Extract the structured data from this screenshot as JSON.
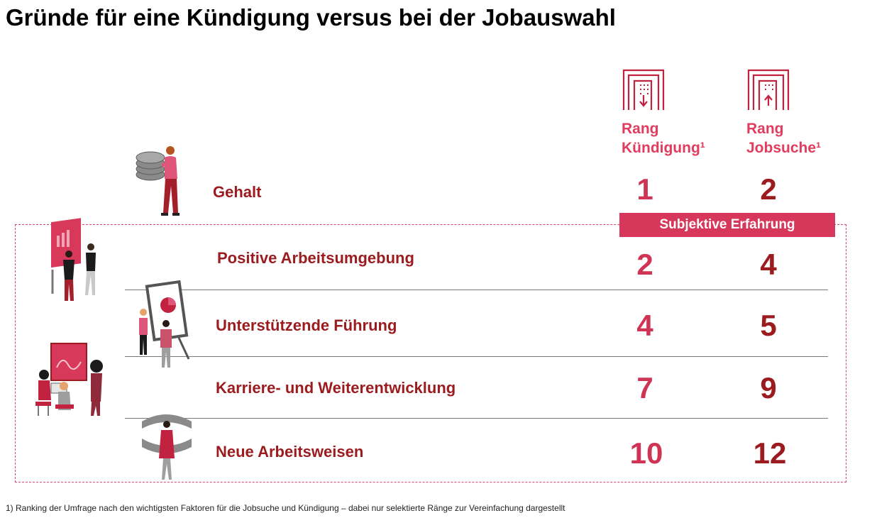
{
  "title": "Gründe für eine Kündigung versus bei der Jobauswahl",
  "columns": {
    "kuendigung": {
      "line1": "Rang",
      "line2": "Kündigung¹",
      "icon": "building-arrow-down-icon"
    },
    "jobsuche": {
      "line1": "Rang",
      "line2": "Jobsuche¹",
      "icon": "building-arrow-up-icon"
    }
  },
  "banner": "Subjektive Erfahrung",
  "rows": [
    {
      "label": "Gehalt",
      "rank_kuendigung": "1",
      "rank_jobsuche": "2"
    },
    {
      "label": "Positive Arbeitsumgebung",
      "rank_kuendigung": "2",
      "rank_jobsuche": "4"
    },
    {
      "label": "Unterstützende Führung",
      "rank_kuendigung": "4",
      "rank_jobsuche": "5"
    },
    {
      "label": "Karriere- und Weiterentwicklung",
      "rank_kuendigung": "7",
      "rank_jobsuche": "9"
    },
    {
      "label": "Neue Arbeitsweisen",
      "rank_kuendigung": "10",
      "rank_jobsuche": "12"
    }
  ],
  "footnote": "1) Ranking der Umfrage nach den wichtigsten Faktoren für die Jobsuche und Kündigung – dabei nur selektierte Ränge zur Vereinfachung dargestellt",
  "colors": {
    "accent": "#d6375a",
    "dark_red": "#9b1b1f",
    "border": "#d9426a"
  }
}
